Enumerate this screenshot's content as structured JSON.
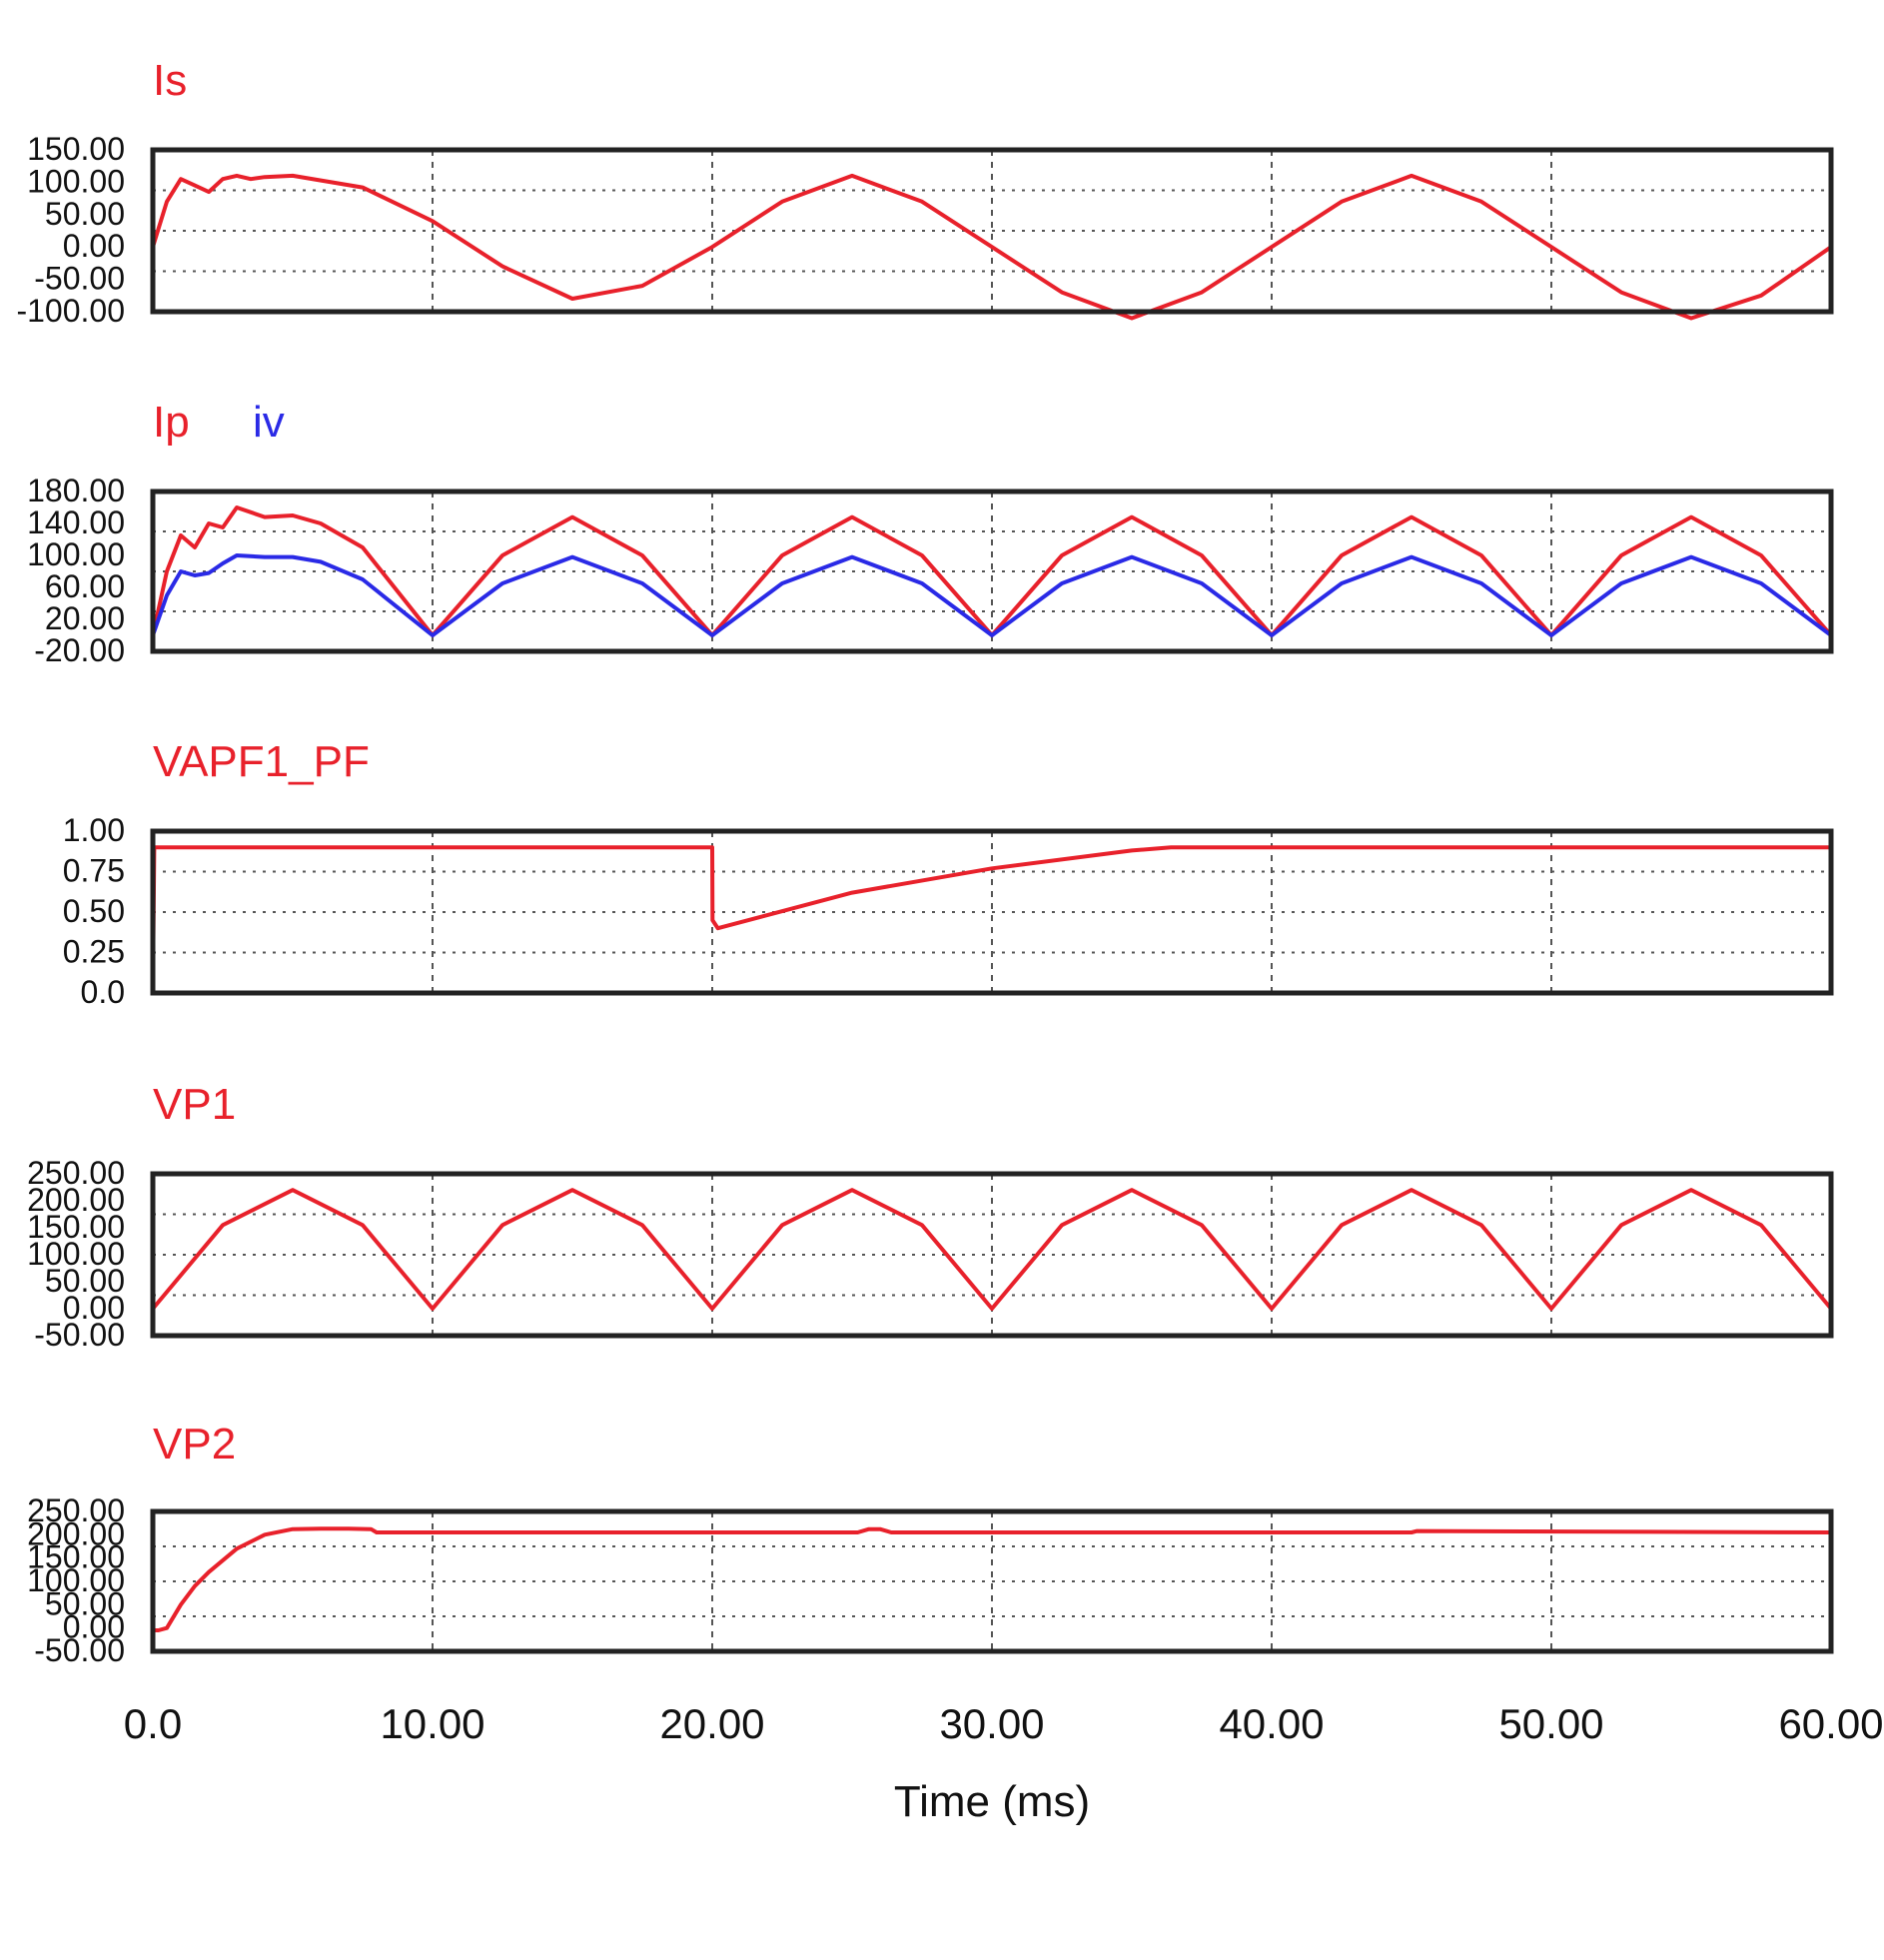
{
  "colors": {
    "red": "#e8212b",
    "blue": "#2a2ae6",
    "frame": "#222222",
    "grid": "#555555"
  },
  "chart_data": [
    {
      "type": "line",
      "ylim": [
        -100,
        150
      ],
      "yticks": [
        "-100.00",
        "-50.00",
        "0.00",
        "50.00",
        "100.00",
        "150.00"
      ],
      "xlim": [
        0,
        60
      ],
      "grid": true,
      "series": [
        {
          "name": "Is",
          "color": "#e8212b",
          "x": [
            0,
            0.5,
            1,
            1.5,
            2,
            2.5,
            3,
            3.5,
            4,
            5,
            7.5,
            10,
            12.5,
            15,
            17.5,
            20,
            22.5,
            25,
            27.5,
            30,
            32.5,
            35,
            37.5,
            40,
            42.5,
            45,
            47.5,
            50,
            52.5,
            55,
            57.5,
            60
          ],
          "y": [
            0,
            70,
            105,
            95,
            85,
            105,
            110,
            105,
            108,
            110,
            92,
            40,
            -30,
            -80,
            -60,
            0,
            70,
            110,
            70,
            0,
            -70,
            -110,
            -70,
            0,
            70,
            110,
            70,
            0,
            -70,
            -110,
            -75,
            0
          ]
        }
      ]
    },
    {
      "type": "line",
      "ylim": [
        -20,
        180
      ],
      "yticks": [
        "-20.00",
        "20.00",
        "60.00",
        "100.00",
        "140.00",
        "180.00"
      ],
      "xlim": [
        0,
        60
      ],
      "grid": true,
      "series": [
        {
          "name": "Ip",
          "color": "#e8212b",
          "x": [
            0,
            0.5,
            1,
            1.5,
            2,
            2.5,
            3,
            4,
            5,
            6,
            7.5,
            10,
            12.5,
            15,
            17.5,
            20,
            22.5,
            25,
            27.5,
            30,
            32.5,
            35,
            37.5,
            40,
            42.5,
            45,
            47.5,
            50,
            52.5,
            55,
            57.5,
            60
          ],
          "y": [
            0,
            80,
            125,
            110,
            140,
            135,
            160,
            148,
            150,
            140,
            110,
            0,
            100,
            148,
            100,
            0,
            100,
            148,
            100,
            0,
            100,
            148,
            100,
            0,
            100,
            148,
            100,
            0,
            100,
            148,
            100,
            0
          ]
        },
        {
          "name": "iv",
          "color": "#2a2ae6",
          "x": [
            0,
            0.5,
            1,
            1.5,
            2,
            2.5,
            3,
            4,
            5,
            6,
            7.5,
            10,
            12.5,
            15,
            17.5,
            20,
            22.5,
            25,
            27.5,
            30,
            32.5,
            35,
            37.5,
            40,
            42.5,
            45,
            47.5,
            50,
            52.5,
            55,
            57.5,
            60
          ],
          "y": [
            0,
            50,
            80,
            75,
            78,
            90,
            100,
            98,
            98,
            92,
            70,
            0,
            65,
            98,
            65,
            0,
            65,
            98,
            65,
            0,
            65,
            98,
            65,
            0,
            65,
            98,
            65,
            0,
            65,
            98,
            65,
            0
          ]
        }
      ]
    },
    {
      "type": "line",
      "ylim": [
        0,
        1
      ],
      "yticks": [
        "0.0",
        "0.25",
        "0.50",
        "0.75",
        "1.00"
      ],
      "xlim": [
        0,
        60
      ],
      "grid": true,
      "series": [
        {
          "name": "VAPF1_PF",
          "color": "#e8212b",
          "x": [
            0,
            0.05,
            20,
            20.01,
            20.2,
            25,
            30,
            35,
            36.4,
            60
          ],
          "y": [
            0,
            0.9,
            0.9,
            0.45,
            0.4,
            0.62,
            0.77,
            0.88,
            0.9,
            0.9
          ]
        }
      ]
    },
    {
      "type": "line",
      "ylim": [
        -50,
        250
      ],
      "yticks": [
        "-50.00",
        "0.00",
        "50.00",
        "100.00",
        "150.00",
        "200.00",
        "250.00"
      ],
      "xlim": [
        0,
        60
      ],
      "grid": true,
      "series": [
        {
          "name": "VP1",
          "color": "#e8212b",
          "x": [
            0,
            2.5,
            5,
            7.5,
            10,
            12.5,
            15,
            17.5,
            20,
            22.5,
            25,
            27.5,
            30,
            32.5,
            35,
            37.5,
            40,
            42.5,
            45,
            47.5,
            50,
            52.5,
            55,
            57.5,
            60
          ],
          "y": [
            0,
            155,
            220,
            155,
            0,
            155,
            220,
            155,
            0,
            155,
            220,
            155,
            0,
            155,
            220,
            155,
            0,
            155,
            220,
            155,
            0,
            155,
            220,
            155,
            0
          ]
        }
      ]
    },
    {
      "type": "line",
      "ylim": [
        -50,
        250
      ],
      "yticks": [
        "-50.00",
        "0.00",
        "50.00",
        "100.00",
        "150.00",
        "200.00",
        "250.00"
      ],
      "xlim": [
        0,
        60
      ],
      "grid": true,
      "series": [
        {
          "name": "VP2",
          "color": "#e8212b",
          "x": [
            0,
            0.2,
            0.5,
            1,
            1.5,
            2,
            3,
            4,
            5,
            6,
            7,
            7.8,
            8,
            25.2,
            25.6,
            26,
            26.4,
            45,
            45.2,
            60
          ],
          "y": [
            -5,
            -5,
            0,
            50,
            90,
            120,
            170,
            200,
            212,
            213,
            213,
            212,
            205,
            205,
            212,
            212,
            205,
            205,
            208,
            205
          ]
        }
      ]
    }
  ],
  "xaxis": {
    "ticks": [
      "0.0",
      "10.00",
      "20.00",
      "30.00",
      "40.00",
      "50.00",
      "60.00"
    ],
    "tick_values": [
      0,
      10,
      20,
      30,
      40,
      50,
      60
    ],
    "label": "Time (ms)"
  }
}
